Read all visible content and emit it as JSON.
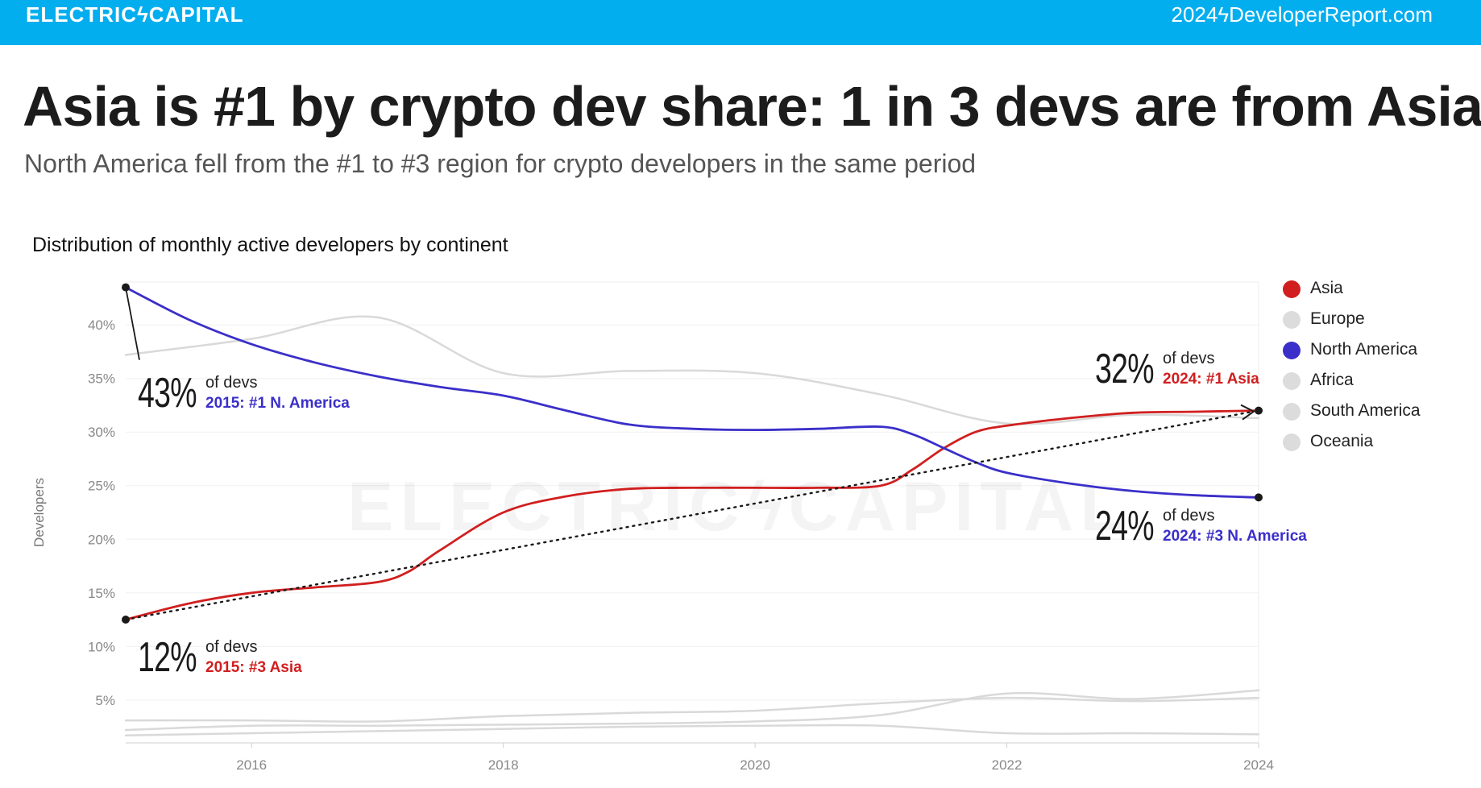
{
  "header": {
    "brand": "ELECTRICϟCAPITAL",
    "site": "2024ϟDeveloperReport.com",
    "bar_color": "#03aeef"
  },
  "headline": "Asia is #1 by crypto dev share: 1 in 3 devs are from Asia",
  "subhead": "North America fell from the #1 to #3 region for crypto developers in the same period",
  "watermark": "ELECTRICϟCAPITAL",
  "callouts": {
    "na_2015": {
      "pct": "43%",
      "of": "of devs",
      "rank": "2015: #1 N. America",
      "color": "#3b2fc9"
    },
    "asia_2015": {
      "pct": "12%",
      "of": "of devs",
      "rank": "2015: #3 Asia",
      "color": "#d11f1f"
    },
    "asia_2024": {
      "pct": "32%",
      "of": "of devs",
      "rank": "2024: #1 Asia",
      "color": "#d11f1f"
    },
    "na_2024": {
      "pct": "24%",
      "of": "of devs",
      "rank": "2024: #3 N. America",
      "color": "#3b2fc9"
    }
  },
  "chart_data": {
    "type": "line",
    "title": "Distribution of monthly active developers by continent",
    "xlabel": "",
    "ylabel": "Developers",
    "xlim": [
      2015,
      2024
    ],
    "ylim": [
      1,
      44
    ],
    "x_ticks": [
      "2016",
      "2018",
      "2020",
      "2022",
      "2024"
    ],
    "y_ticks": [
      "5%",
      "10%",
      "15%",
      "20%",
      "25%",
      "30%",
      "35%",
      "40%"
    ],
    "legend": {
      "position": "right"
    },
    "series": [
      {
        "name": "Asia",
        "color": "#d11f1f",
        "highlight": true,
        "x": [
          2015,
          2015.5,
          2016,
          2016.5,
          2017,
          2017.25,
          2017.5,
          2018,
          2018.5,
          2019,
          2019.5,
          2020,
          2020.5,
          2021,
          2021.25,
          2021.5,
          2021.75,
          2022,
          2022.5,
          2023,
          2023.5,
          2024
        ],
        "y": [
          12.5,
          14,
          15,
          15.5,
          16,
          17,
          19,
          22.5,
          24,
          24.7,
          24.8,
          24.8,
          24.8,
          25,
          26.5,
          28.5,
          30,
          30.6,
          31.3,
          31.8,
          31.9,
          32
        ]
      },
      {
        "name": "Europe",
        "color": "#d9d9d9",
        "highlight": false,
        "x": [
          2015,
          2016,
          2017,
          2018,
          2019,
          2020,
          2021,
          2022,
          2023,
          2024
        ],
        "y": [
          37.2,
          38.7,
          40.7,
          35.5,
          35.7,
          35.5,
          33.5,
          30.8,
          31.6,
          31.3
        ]
      },
      {
        "name": "North America",
        "color": "#3b2fc9",
        "highlight": true,
        "x": [
          2015,
          2015.5,
          2016,
          2016.5,
          2017,
          2017.5,
          2018,
          2018.5,
          2019,
          2019.5,
          2020,
          2020.5,
          2021,
          2021.25,
          2021.5,
          2021.75,
          2022,
          2022.5,
          2023,
          2023.5,
          2024
        ],
        "y": [
          43.5,
          40.5,
          38.2,
          36.5,
          35.2,
          34.2,
          33.4,
          32,
          30.7,
          30.3,
          30.2,
          30.3,
          30.5,
          29.8,
          28.5,
          27.2,
          26.2,
          25.2,
          24.5,
          24.1,
          23.9
        ]
      },
      {
        "name": "Africa",
        "color": "#d9d9d9",
        "highlight": false,
        "x": [
          2015,
          2016,
          2017,
          2018,
          2019,
          2020,
          2021,
          2022,
          2023,
          2024
        ],
        "y": [
          2.2,
          2.6,
          2.6,
          2.7,
          2.8,
          3,
          3.6,
          5.6,
          5.1,
          5.9
        ]
      },
      {
        "name": "South America",
        "color": "#d9d9d9",
        "highlight": false,
        "x": [
          2015,
          2016,
          2017,
          2018,
          2019,
          2020,
          2021,
          2022,
          2023,
          2024
        ],
        "y": [
          3.1,
          3.1,
          3.0,
          3.5,
          3.8,
          4.0,
          4.7,
          5.2,
          4.9,
          5.2
        ]
      },
      {
        "name": "Oceania",
        "color": "#d9d9d9",
        "highlight": false,
        "x": [
          2015,
          2016,
          2017,
          2018,
          2019,
          2020,
          2021,
          2022,
          2023,
          2024
        ],
        "y": [
          1.7,
          1.9,
          2.1,
          2.3,
          2.5,
          2.6,
          2.6,
          1.9,
          1.9,
          1.8
        ]
      }
    ],
    "trend_line": {
      "from": [
        2015,
        12.5
      ],
      "to": [
        2024,
        32
      ]
    }
  }
}
